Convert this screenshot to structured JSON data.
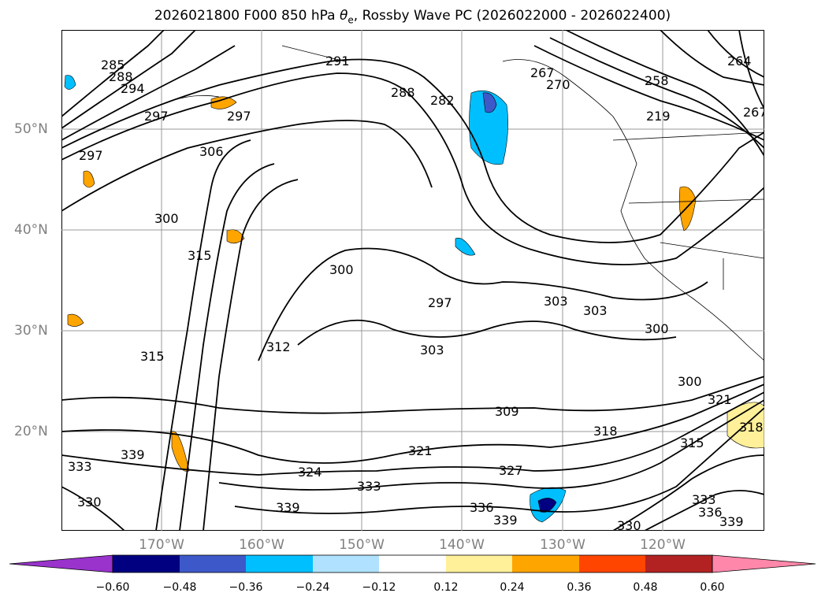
{
  "title": {
    "prefix": "2026021800 F000 850 hPa ",
    "theta": "θ",
    "sub": "e",
    "suffix": ", Rossby Wave PC (2026022000 - 2026022400)"
  },
  "axes": {
    "lat_labels": [
      "50°N",
      "40°N",
      "30°N",
      "20°N"
    ],
    "lon_labels": [
      "170°W",
      "160°W",
      "150°W",
      "140°W",
      "130°W",
      "120°W"
    ]
  },
  "contour_labels": [
    "285",
    "288",
    "294",
    "291",
    "288",
    "282",
    "267",
    "270",
    "258",
    "264",
    "267",
    "219",
    "297",
    "297",
    "297",
    "306",
    "300",
    "315",
    "300",
    "297",
    "303",
    "303",
    "300",
    "312",
    "315",
    "303",
    "309",
    "300",
    "321",
    "318",
    "315",
    "321",
    "324",
    "327",
    "333",
    "339",
    "339",
    "330",
    "336",
    "339",
    "330",
    "333",
    "336",
    "339",
    "333",
    "318"
  ],
  "colorbar": {
    "ticks": [
      "−0.60",
      "−0.48",
      "−0.36",
      "−0.24",
      "−0.12",
      "0.12",
      "0.24",
      "0.36",
      "0.48",
      "0.60"
    ],
    "colors": [
      "#9933cc",
      "#9933cc",
      "#000080",
      "#3d59c9",
      "#00bfff",
      "#b0e2ff",
      "#ffffff",
      "#fff099",
      "#ffa500",
      "#ff4500",
      "#b22222",
      "#ff88aa",
      "#ff88aa"
    ]
  }
}
